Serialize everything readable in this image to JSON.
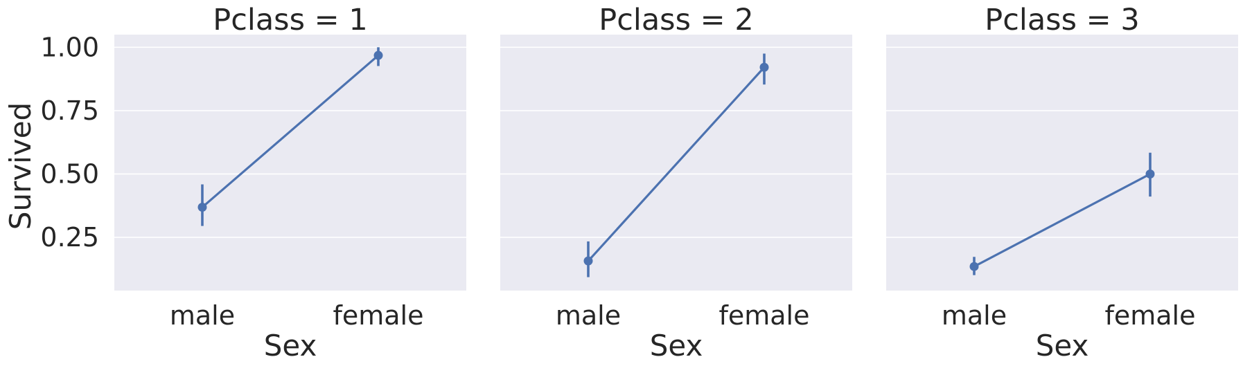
{
  "chart_data": {
    "type": "line",
    "ylabel": "Survived",
    "ylim": [
      0.04,
      1.05
    ],
    "yticks": [
      0.25,
      0.5,
      0.75,
      1.0
    ],
    "ytick_labels": [
      "0.25",
      "0.50",
      "0.75",
      "1.00"
    ],
    "grid": true,
    "color": "#4c72b0",
    "panel_background": "#eaeaf2",
    "panels": [
      {
        "title": "Pclass = 1",
        "xlabel": "Sex",
        "categories": [
          "male",
          "female"
        ],
        "values": [
          0.369,
          0.968
        ],
        "ci_low": [
          0.295,
          0.926
        ],
        "ci_high": [
          0.459,
          1.0
        ]
      },
      {
        "title": "Pclass = 2",
        "xlabel": "Sex",
        "categories": [
          "male",
          "female"
        ],
        "values": [
          0.157,
          0.921
        ],
        "ci_low": [
          0.093,
          0.853
        ],
        "ci_high": [
          0.234,
          0.975
        ]
      },
      {
        "title": "Pclass = 3",
        "xlabel": "Sex",
        "categories": [
          "male",
          "female"
        ],
        "values": [
          0.135,
          0.5
        ],
        "ci_low": [
          0.101,
          0.411
        ],
        "ci_high": [
          0.173,
          0.584
        ]
      }
    ]
  }
}
